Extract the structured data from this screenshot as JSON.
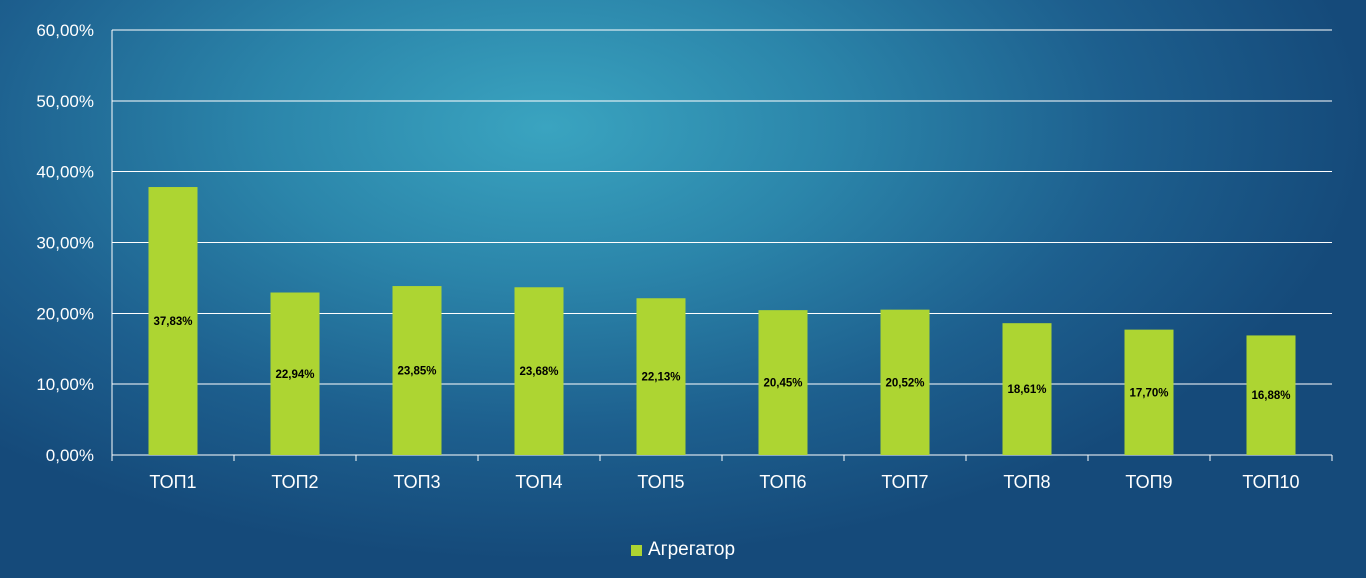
{
  "chart_data": {
    "type": "bar",
    "categories": [
      "ТОП1",
      "ТОП2",
      "ТОП3",
      "ТОП4",
      "ТОП5",
      "ТОП6",
      "ТОП7",
      "ТОП8",
      "ТОП9",
      "ТОП10"
    ],
    "series": [
      {
        "name": "Агрегатор",
        "values": [
          37.83,
          22.94,
          23.85,
          23.68,
          22.13,
          20.45,
          20.52,
          18.61,
          17.7,
          16.88
        ],
        "labels": [
          "37,83%",
          "22,94%",
          "23,85%",
          "23,68%",
          "22,13%",
          "20,45%",
          "20,52%",
          "18,61%",
          "17,70%",
          "16,88%"
        ],
        "color": "#add532"
      }
    ],
    "y_ticks": [
      "0,00%",
      "10,00%",
      "20,00%",
      "30,00%",
      "40,00%",
      "50,00%",
      "60,00%"
    ],
    "ylim": [
      0,
      60
    ],
    "grid": true,
    "legend_position": "bottom",
    "title": "",
    "xlabel": "",
    "ylabel": ""
  },
  "legend": {
    "label": "Агрегатор"
  },
  "colors": {
    "bar": "#add532",
    "grid": "#ffffff",
    "text": "#ffffff",
    "data_label": "#000000"
  }
}
